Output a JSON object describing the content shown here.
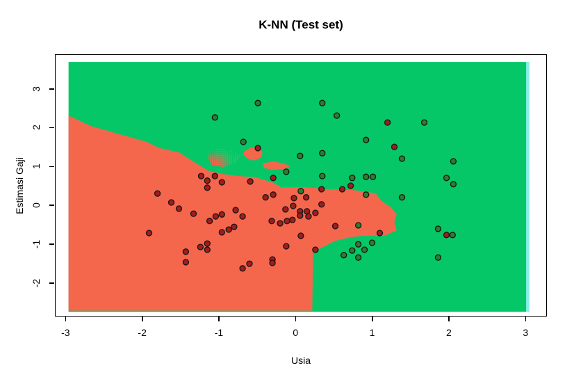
{
  "title": "K-NN (Test set)",
  "x_axis": {
    "label": "Usia",
    "ticks": [
      -3,
      -2,
      -1,
      0,
      1,
      2,
      3
    ],
    "range": [
      -3.139,
      3.279
    ]
  },
  "y_axis": {
    "label": "Estimasi Gaji",
    "ticks": [
      -2,
      -1,
      0,
      1,
      2,
      3
    ],
    "range": [
      -2.869,
      3.891
    ]
  },
  "colors": {
    "region_red": "#F4674D",
    "region_green": "#06C768",
    "point_red": "#A11D1D",
    "point_green": "#2E7D2E",
    "point_outline": "#151515",
    "region_edge_cyan": "#8CEDEE",
    "axis_black": "#000000"
  },
  "chart_data": {
    "type": "scatter",
    "title": "K-NN (Test set)",
    "xlabel": "Usia",
    "ylabel": "Estimasi Gaji",
    "xlim": [
      -3.139,
      3.279
    ],
    "ylim": [
      -2.869,
      3.891
    ],
    "grid": false,
    "legend": "none",
    "region_bounds": {
      "x": [
        -2.97,
        3.04
      ],
      "y": [
        -2.73,
        3.71
      ]
    },
    "red_region_polygon": [
      [
        -2.97,
        2.33
      ],
      [
        -2.68,
        2.06
      ],
      [
        -2.31,
        1.85
      ],
      [
        -1.95,
        1.65
      ],
      [
        -1.78,
        1.49
      ],
      [
        -1.53,
        1.38
      ],
      [
        -1.33,
        1.13
      ],
      [
        -1.14,
        0.9
      ],
      [
        -0.95,
        0.82
      ],
      [
        -0.75,
        0.77
      ],
      [
        -0.53,
        0.74
      ],
      [
        -0.29,
        0.59
      ],
      [
        -0.2,
        0.48
      ],
      [
        0.13,
        0.48
      ],
      [
        0.43,
        0.43
      ],
      [
        0.74,
        0.41
      ],
      [
        0.98,
        0.34
      ],
      [
        1.04,
        0.32
      ],
      [
        1.11,
        0.13
      ],
      [
        1.24,
        -0.04
      ],
      [
        1.31,
        -0.22
      ],
      [
        1.28,
        -0.41
      ],
      [
        1.31,
        -0.63
      ],
      [
        1.15,
        -0.77
      ],
      [
        0.88,
        -0.77
      ],
      [
        0.7,
        -0.81
      ],
      [
        0.51,
        -0.9
      ],
      [
        0.3,
        -1.11
      ],
      [
        0.22,
        -1.17
      ],
      [
        0.21,
        -2.7
      ],
      [
        -2.97,
        -2.7
      ]
    ],
    "red_islands": [
      [
        [
          -0.68,
          1.4
        ],
        [
          -0.6,
          1.5
        ],
        [
          -0.5,
          1.52
        ],
        [
          -0.44,
          1.38
        ],
        [
          -0.46,
          1.24
        ],
        [
          -0.55,
          1.17
        ],
        [
          -0.64,
          1.22
        ],
        [
          -0.69,
          1.32
        ]
      ],
      [
        [
          -0.44,
          1.1
        ],
        [
          -0.3,
          1.14
        ],
        [
          -0.16,
          1.1
        ],
        [
          -0.08,
          1.02
        ],
        [
          -0.16,
          0.95
        ],
        [
          -0.32,
          0.93
        ],
        [
          -0.42,
          0.98
        ]
      ]
    ],
    "dither_patch": [
      [
        -1.14,
        1.42
      ],
      [
        -1.0,
        1.48
      ],
      [
        -0.85,
        1.42
      ],
      [
        -0.73,
        1.3
      ],
      [
        -0.8,
        1.1
      ],
      [
        -0.95,
        1.0
      ],
      [
        -1.1,
        1.06
      ],
      [
        -1.15,
        1.25
      ]
    ],
    "series": [
      {
        "name": "class-0-red",
        "color": "#A11D1D",
        "points": [
          [
            1.19,
            2.15
          ],
          [
            1.28,
            1.52
          ],
          [
            -0.5,
            1.49
          ],
          [
            -1.81,
            0.32
          ],
          [
            -1.63,
            0.09
          ],
          [
            -1.53,
            -0.07
          ],
          [
            -1.24,
            0.77
          ],
          [
            -1.16,
            0.65
          ],
          [
            -1.06,
            0.77
          ],
          [
            -1.16,
            0.47
          ],
          [
            -0.97,
            0.61
          ],
          [
            -0.6,
            0.63
          ],
          [
            -0.3,
            0.72
          ],
          [
            -0.3,
            0.29
          ],
          [
            -0.4,
            0.22
          ],
          [
            -0.03,
            0.2
          ],
          [
            0.13,
            0.22
          ],
          [
            -0.04,
            0.0
          ],
          [
            0.05,
            -0.14
          ],
          [
            0.14,
            -0.14
          ],
          [
            0.05,
            -0.25
          ],
          [
            0.16,
            -0.27
          ],
          [
            0.25,
            -0.18
          ],
          [
            0.33,
            0.04
          ],
          [
            -0.14,
            -0.09
          ],
          [
            0.33,
            0.43
          ],
          [
            0.6,
            0.43
          ],
          [
            0.71,
            0.52
          ],
          [
            -0.79,
            -0.11
          ],
          [
            -0.97,
            -0.22
          ],
          [
            -0.7,
            -0.27
          ],
          [
            -1.05,
            -0.27
          ],
          [
            -1.34,
            -0.2
          ],
          [
            -1.13,
            -0.39
          ],
          [
            -0.32,
            -0.39
          ],
          [
            -0.21,
            -0.45
          ],
          [
            -0.12,
            -0.39
          ],
          [
            -0.05,
            -0.36
          ],
          [
            -0.97,
            -0.68
          ],
          [
            -0.88,
            -0.61
          ],
          [
            -0.81,
            -0.54
          ],
          [
            0.51,
            -0.52
          ],
          [
            1.09,
            -0.7
          ],
          [
            1.96,
            -0.75
          ],
          [
            -1.92,
            -0.7
          ],
          [
            -1.44,
            -1.18
          ],
          [
            -1.44,
            -1.45
          ],
          [
            -1.25,
            -1.06
          ],
          [
            -1.16,
            -0.97
          ],
          [
            -1.16,
            -1.13
          ],
          [
            0.06,
            -0.77
          ],
          [
            -0.13,
            -1.04
          ],
          [
            0.25,
            -1.13
          ],
          [
            -0.31,
            -1.38
          ],
          [
            -0.31,
            -1.47
          ],
          [
            -0.61,
            -1.49
          ],
          [
            -0.7,
            -1.61
          ]
        ]
      },
      {
        "name": "class-1-green",
        "color": "#2E7D2E",
        "points": [
          [
            -1.06,
            2.28
          ],
          [
            -0.5,
            2.65
          ],
          [
            0.34,
            2.65
          ],
          [
            0.53,
            2.33
          ],
          [
            -0.69,
            1.65
          ],
          [
            0.91,
            1.7
          ],
          [
            1.67,
            2.15
          ],
          [
            1.38,
            1.22
          ],
          [
            2.05,
            1.15
          ],
          [
            1.96,
            0.72
          ],
          [
            2.05,
            0.56
          ],
          [
            1.38,
            0.22
          ],
          [
            0.05,
            1.29
          ],
          [
            0.34,
            1.36
          ],
          [
            -0.13,
            0.88
          ],
          [
            0.34,
            0.77
          ],
          [
            0.73,
            0.72
          ],
          [
            0.91,
            0.75
          ],
          [
            1.0,
            0.75
          ],
          [
            0.91,
            0.29
          ],
          [
            0.06,
            0.38
          ],
          [
            0.81,
            -0.5
          ],
          [
            0.81,
            -0.99
          ],
          [
            0.99,
            -0.95
          ],
          [
            0.73,
            -1.15
          ],
          [
            0.62,
            -1.27
          ],
          [
            0.89,
            -1.13
          ],
          [
            0.81,
            -1.33
          ],
          [
            1.85,
            -0.59
          ],
          [
            2.04,
            -0.75
          ],
          [
            1.85,
            -1.33
          ]
        ]
      }
    ]
  }
}
